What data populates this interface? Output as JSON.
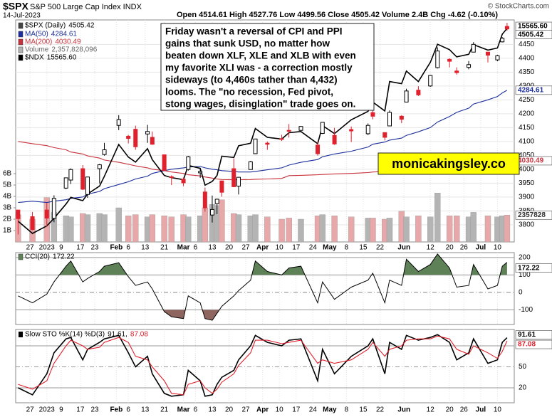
{
  "chart_data": {
    "type": "candlestick",
    "header": {
      "symbol": "$SPX",
      "name": "S&P 500 Large Cap Index INDX",
      "date": "14-Jul-2023",
      "quote": "Open 4514.61 High 4527.76 Low 4499.56 Close 4505.42 Volume 2.4B Chg -4.62 (-0.10%)",
      "credit": "© StockCharts.com"
    },
    "annotation": [
      "Friday wasn't a reversal of CPI and PPI",
      "gains that sunk USD, no matter how",
      "beaten down XLF, XLE and XLB with even",
      "my favorite XLI was - a correction mostly",
      "sideways (to 4,460s tather than 4,432)",
      "looms. The \"no recession, Fed pivot,",
      "stong wages, disinglation\" trade goes on."
    ],
    "watermark": "monicakingsley.co",
    "x": [
      "2022-12-22",
      "2022-12-28",
      "2023-01-03",
      "2023-01-06",
      "2023-01-11",
      "2023-01-13",
      "2023-01-18",
      "2023-01-20",
      "2023-01-25",
      "2023-01-27",
      "2023-02-02",
      "2023-02-06",
      "2023-02-09",
      "2023-02-14",
      "2023-02-16",
      "2023-02-21",
      "2023-02-24",
      "2023-03-01",
      "2023-03-03",
      "2023-03-08",
      "2023-03-10",
      "2023-03-13",
      "2023-03-15",
      "2023-03-17",
      "2023-03-22",
      "2023-03-24",
      "2023-03-29",
      "2023-03-31",
      "2023-04-05",
      "2023-04-11",
      "2023-04-14",
      "2023-04-19",
      "2023-04-26",
      "2023-04-28",
      "2023-05-03",
      "2023-05-10",
      "2023-05-17",
      "2023-05-19",
      "2023-05-24",
      "2023-05-26",
      "2023-05-31",
      "2023-06-02",
      "2023-06-07",
      "2023-06-12",
      "2023-06-15",
      "2023-06-20",
      "2023-06-23",
      "2023-06-28",
      "2023-06-30",
      "2023-07-06",
      "2023-07-10",
      "2023-07-12",
      "2023-07-14"
    ],
    "xlim": [
      "2022-12-21",
      "2023-07-17"
    ],
    "xticks": [
      {
        "value": "2022-12-27",
        "label": "27"
      },
      {
        "value": "2023-01-03",
        "label": "2023"
      },
      {
        "value": "2023-01-09",
        "label": "9"
      },
      {
        "value": "2023-01-17",
        "label": "17"
      },
      {
        "value": "2023-01-23",
        "label": "23"
      },
      {
        "value": "2023-02-01",
        "label": "Feb"
      },
      {
        "value": "2023-02-06",
        "label": "6"
      },
      {
        "value": "2023-02-13",
        "label": "13"
      },
      {
        "value": "2023-02-21",
        "label": "21"
      },
      {
        "value": "2023-03-01",
        "label": "Mar"
      },
      {
        "value": "2023-03-06",
        "label": "6"
      },
      {
        "value": "2023-03-13",
        "label": "13"
      },
      {
        "value": "2023-03-20",
        "label": "20"
      },
      {
        "value": "2023-03-27",
        "label": "27"
      },
      {
        "value": "2023-04-03",
        "label": "Apr"
      },
      {
        "value": "2023-04-10",
        "label": "10"
      },
      {
        "value": "2023-04-17",
        "label": "17"
      },
      {
        "value": "2023-04-24",
        "label": "24"
      },
      {
        "value": "2023-05-01",
        "label": "May"
      },
      {
        "value": "2023-05-08",
        "label": "8"
      },
      {
        "value": "2023-05-15",
        "label": "15"
      },
      {
        "value": "2023-05-22",
        "label": "22"
      },
      {
        "value": "2023-06-01",
        "label": "Jun"
      },
      {
        "value": "2023-06-12",
        "label": "12"
      },
      {
        "value": "2023-06-20",
        "label": "20"
      },
      {
        "value": "2023-06-26",
        "label": "26"
      },
      {
        "value": "2023-07-03",
        "label": "Jul"
      },
      {
        "value": "2023-07-10",
        "label": "10"
      }
    ],
    "price": {
      "name": "$SPX (Daily)",
      "up_color": "#000000",
      "down_color": "#e0202c",
      "open": [
        3853,
        3829,
        3853,
        3823,
        3932,
        3961,
        4002,
        3909,
        4002,
        4053,
        4158,
        4119,
        4144,
        4127,
        4115,
        4052,
        3973,
        3964,
        3999,
        3987,
        3918,
        3835,
        3876,
        3958,
        4002,
        3939,
        3999,
        4056,
        4094,
        4110,
        4140,
        4140,
        4087,
        4129,
        4122,
        4143,
        4128,
        4204,
        4132,
        4156,
        4191,
        4242,
        4285,
        4300,
        4366,
        4396,
        4354,
        4367,
        4422,
        4422,
        4394,
        4459,
        4514.61
      ],
      "high": [
        3853,
        3846,
        3878,
        3906,
        3970,
        4003,
        4015,
        3973,
        4019,
        4095,
        4195,
        4124,
        4157,
        4160,
        4136,
        4052,
        3978,
        3971,
        4048,
        4000,
        3934,
        3905,
        3894,
        3958,
        4039,
        3972,
        4030,
        4110,
        4100,
        4124,
        4163,
        4156,
        4100,
        4170,
        4149,
        4154,
        4165,
        4213,
        4132,
        4212,
        4195,
        4290,
        4299,
        4340,
        4439,
        4400,
        4367,
        4390,
        4458,
        4422,
        4412,
        4476,
        4527.76
      ],
      "low": [
        3765,
        3780,
        3794,
        3809,
        3928,
        3947,
        3925,
        3897,
        3949,
        4049,
        4141,
        4093,
        4070,
        4095,
        4088,
        3995,
        3943,
        3939,
        3995,
        3969,
        3847,
        3808,
        3838,
        3901,
        3936,
        3909,
        3999,
        4056,
        4070,
        4102,
        4114,
        4136,
        4049,
        4127,
        4088,
        4098,
        4123,
        4180,
        4104,
        4156,
        4166,
        4242,
        4264,
        4297,
        4363,
        4367,
        4341,
        4360,
        4422,
        4385,
        4389,
        4457,
        4499.56
      ],
      "close": [
        3822,
        3783,
        3824,
        3895,
        3969,
        3999,
        3928,
        3972,
        4016,
        4070,
        4179,
        4111,
        4081,
        4136,
        4090,
        3997,
        3970,
        3951,
        4045,
        3992,
        3861,
        3855,
        3892,
        3917,
        3937,
        3971,
        4027,
        4109,
        4090,
        4108,
        4137,
        4154,
        4056,
        4169,
        4091,
        4138,
        4158,
        4191,
        4115,
        4205,
        4180,
        4282,
        4268,
        4338,
        4426,
        4389,
        4348,
        4377,
        4450,
        4411,
        4409,
        4472,
        4505.42
      ]
    },
    "ylim": [
      3738,
      4538
    ],
    "yticks": [
      3800,
      3850,
      3900,
      3950,
      4000,
      4050,
      4100,
      4150,
      4200,
      4250,
      4300,
      4350,
      4400,
      4450
    ],
    "y2lim": [
      10476,
      15770
    ],
    "grid": true,
    "series": [
      {
        "name": "MA(50)",
        "color": "#1c2f9c",
        "values": [
          3880,
          3885,
          3880,
          3885,
          3890,
          3895,
          3900,
          3910,
          3920,
          3930,
          3945,
          3955,
          3965,
          3975,
          3985,
          3995,
          4000,
          4005,
          4008,
          4010,
          4005,
          4000,
          3998,
          3995,
          3992,
          3990,
          3990,
          3992,
          3998,
          4005,
          4015,
          4025,
          4035,
          4045,
          4055,
          4065,
          4080,
          4090,
          4098,
          4105,
          4112,
          4122,
          4135,
          4150,
          4170,
          4190,
          4205,
          4220,
          4235,
          4250,
          4262,
          4275,
          4284.61
        ]
      },
      {
        "name": "MA(200)",
        "color": "#c8323c",
        "values": [
          4100,
          4092,
          4085,
          4078,
          4070,
          4062,
          4055,
          4048,
          4040,
          4033,
          4025,
          4018,
          4012,
          4005,
          4000,
          3995,
          3990,
          3985,
          3980,
          3976,
          3972,
          3968,
          3965,
          3963,
          3962,
          3962,
          3963,
          3964,
          3965,
          3967,
          3977,
          3978,
          3980,
          3981,
          3983,
          3985,
          3988,
          3990,
          3992,
          3995,
          3997,
          3999,
          4002,
          4004,
          4007,
          4010,
          4012,
          4015,
          4018,
          4022,
          4025,
          4028,
          4030.49
        ]
      },
      {
        "name": "$NDX",
        "color": "#000000",
        "axis": "y2",
        "last_label": "15565.60",
        "values": [
          10970,
          10680,
          10860,
          11040,
          11380,
          11540,
          11460,
          11620,
          11810,
          12040,
          12800,
          12500,
          12380,
          12700,
          12440,
          12060,
          12010,
          11960,
          12300,
          12230,
          11830,
          11920,
          12060,
          12520,
          12490,
          12770,
          12830,
          13180,
          12970,
          12930,
          13080,
          13110,
          12820,
          13250,
          13060,
          13390,
          13590,
          13810,
          13600,
          14300,
          14250,
          14550,
          14300,
          14760,
          15190,
          15060,
          14890,
          14950,
          15180,
          15050,
          15100,
          15430,
          15565.6
        ]
      }
    ],
    "volume": {
      "name": "Volume",
      "label": "2,357,828,096",
      "box_label": "2357828",
      "up_color": "#b4b4b4",
      "down_color": "#e8a8aa",
      "ylim": [
        0,
        19.5
      ],
      "yticks": [
        {
          "value": 1,
          "label": "1B"
        },
        {
          "value": 2,
          "label": "2B"
        },
        {
          "value": 3,
          "label": "3B"
        },
        {
          "value": 4,
          "label": "4B"
        },
        {
          "value": 5,
          "label": "5B"
        },
        {
          "value": 6,
          "label": "6B"
        }
      ],
      "values": [
        2.4,
        2.0,
        3.9,
        2.6,
        2.3,
        2.2,
        2.5,
        2.4,
        2.5,
        2.4,
        3.0,
        2.3,
        2.4,
        2.2,
        2.4,
        2.3,
        2.2,
        2.4,
        2.2,
        2.3,
        3.0,
        3.3,
        3.2,
        3.7,
        2.5,
        2.4,
        2.3,
        2.4,
        2.2,
        2.0,
        2.1,
        2.0,
        2.3,
        2.4,
        2.3,
        2.2,
        2.1,
        2.1,
        2.0,
        2.1,
        2.7,
        2.2,
        2.3,
        2.2,
        4.3,
        2.3,
        2.3,
        2.2,
        2.6,
        2.3,
        2.2,
        2.3,
        2.357828096
      ]
    },
    "cci": {
      "name": "CCI(20)",
      "color": "#000000",
      "above_color": "#5f8158",
      "below_color": "#8f6560",
      "ylim": [
        -184,
        228
      ],
      "yticks": [
        -100,
        0,
        100,
        200
      ],
      "values": [
        -20,
        -60,
        -10,
        60,
        150,
        180,
        60,
        80,
        120,
        150,
        170,
        90,
        40,
        60,
        20,
        -110,
        -140,
        -150,
        -20,
        -60,
        -150,
        -160,
        -120,
        -80,
        -20,
        10,
        70,
        180,
        120,
        100,
        140,
        150,
        -60,
        60,
        -40,
        30,
        70,
        110,
        -60,
        70,
        40,
        190,
        120,
        160,
        220,
        140,
        30,
        40,
        160,
        20,
        40,
        150,
        172.22
      ]
    },
    "sto": {
      "name": "Slow STO %K(14) %D(3)",
      "separator": ",",
      "ylim": [
        -1.4,
        103.4
      ],
      "yticks": [
        20,
        50,
        80
      ],
      "series": [
        {
          "name": "%K",
          "color": "#000000",
          "values": [
            20,
            10,
            40,
            70,
            90,
            92,
            60,
            75,
            85,
            90,
            95,
            70,
            50,
            65,
            40,
            12,
            8,
            10,
            45,
            30,
            8,
            10,
            25,
            35,
            45,
            60,
            80,
            95,
            85,
            80,
            88,
            90,
            30,
            75,
            40,
            65,
            80,
            90,
            40,
            85,
            75,
            95,
            88,
            92,
            96,
            85,
            60,
            70,
            90,
            55,
            60,
            85,
            91.61
          ]
        },
        {
          "name": "%D",
          "color": "#e0202c",
          "values": [
            25,
            18,
            30,
            55,
            80,
            88,
            80,
            75,
            78,
            85,
            92,
            85,
            65,
            60,
            50,
            30,
            12,
            10,
            25,
            30,
            20,
            12,
            18,
            28,
            40,
            52,
            70,
            88,
            88,
            83,
            85,
            88,
            55,
            60,
            55,
            60,
            75,
            85,
            65,
            75,
            80,
            88,
            90,
            90,
            94,
            90,
            75,
            68,
            80,
            70,
            62,
            72,
            87.08
          ]
        }
      ]
    }
  }
}
